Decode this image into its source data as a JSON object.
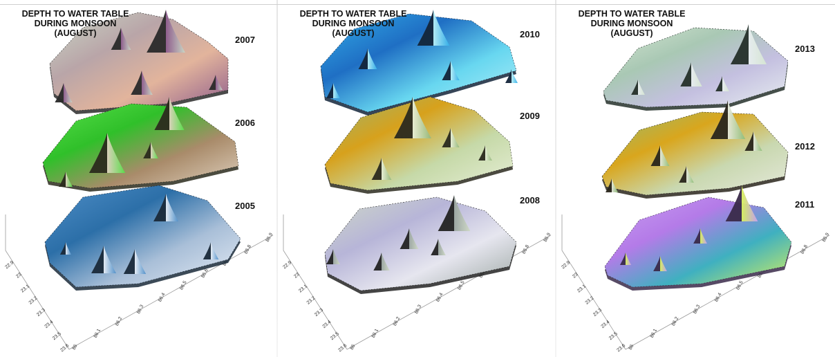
{
  "figure": {
    "panels": [
      {
        "title_lines": [
          "DEPTH TO WATER TABLE",
          "DURING MONSOON",
          "(AUGUST)"
        ],
        "layers": [
          {
            "year": "2007",
            "colors": [
              "#2a2a2a",
              "#b9a5a8",
              "#c9d7c6",
              "#e2b49c",
              "#8c5a8c"
            ]
          },
          {
            "year": "2006",
            "colors": [
              "#2b2b1d",
              "#30c02a",
              "#58e04a",
              "#a98b6a",
              "#e0d2c0"
            ]
          },
          {
            "year": "2005",
            "colors": [
              "#1a2a3a",
              "#2c6fa8",
              "#4f8fc8",
              "#a9bfd8",
              "#e8eef6"
            ]
          }
        ]
      },
      {
        "title_lines": [
          "DEPTH TO WATER TABLE",
          "DURING MONSOON",
          "(AUGUST)"
        ],
        "layers": [
          {
            "year": "2010",
            "colors": [
              "#13253a",
              "#1f6fc4",
              "#33aee8",
              "#68d7f0",
              "#b9f0f7"
            ]
          },
          {
            "year": "2009",
            "colors": [
              "#2b2a1e",
              "#d7a11c",
              "#94b77a",
              "#c6d9a8",
              "#e8efd8"
            ]
          },
          {
            "year": "2008",
            "colors": [
              "#232323",
              "#b7b5d8",
              "#cfd9c6",
              "#e6e6ef",
              "#9aa5a0"
            ]
          }
        ]
      },
      {
        "title_lines": [
          "DEPTH TO WATER TABLE",
          "DURING MONSOON",
          "(AUGUST)"
        ],
        "layers": [
          {
            "year": "2013",
            "colors": [
              "#25302a",
              "#a9c8b4",
              "#d6e6d2",
              "#c4c0e0",
              "#e8eef0"
            ]
          },
          {
            "year": "2012",
            "colors": [
              "#2a261c",
              "#d9a61d",
              "#8fbd78",
              "#c9d8b0",
              "#e6e9dc"
            ]
          },
          {
            "year": "2011",
            "colors": [
              "#3a2a4a",
              "#b47be8",
              "#c9a0f0",
              "#3fb0c0",
              "#d8f25a"
            ]
          }
        ]
      }
    ],
    "axes": {
      "y_ticks": [
        "22.9",
        "23",
        "23.1",
        "23.2",
        "23.3",
        "23.4",
        "23.5",
        "23.6"
      ],
      "x_ticks": [
        "86",
        "86.1",
        "86.2",
        "86.3",
        "86.4",
        "86.5",
        "86.6",
        "86.7",
        "86.8",
        "86.9"
      ]
    }
  },
  "chart_data": {
    "type": "surface",
    "title_lines": [
      "DEPTH TO WATER TABLE",
      "DURING MONSOON",
      "(AUGUST)"
    ],
    "years": [
      "2005",
      "2006",
      "2007",
      "2008",
      "2009",
      "2010",
      "2011",
      "2012",
      "2013"
    ],
    "latitude_ticks": [
      22.9,
      23.0,
      23.1,
      23.2,
      23.3,
      23.4,
      23.5,
      23.6
    ],
    "longitude_ticks": [
      86.0,
      86.1,
      86.2,
      86.3,
      86.4,
      86.5,
      86.6,
      86.7,
      86.8,
      86.9
    ],
    "xlim": [
      86.0,
      86.9
    ],
    "ylim": [
      22.9,
      23.6
    ],
    "panels": [
      {
        "years": [
          "2007",
          "2006",
          "2005"
        ]
      },
      {
        "years": [
          "2010",
          "2009",
          "2008"
        ]
      },
      {
        "years": [
          "2013",
          "2012",
          "2011"
        ]
      }
    ],
    "grid": false
  }
}
